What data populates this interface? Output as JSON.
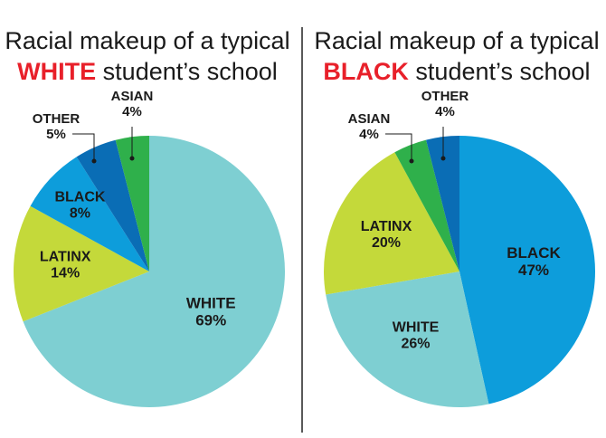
{
  "colors": {
    "white": "#7ecfd2",
    "latinx": "#c4d93a",
    "black": "#0d9ddb",
    "other": "#0a6db5",
    "asian": "#2fb04b",
    "highlight": "#e8202a",
    "text": "#1a1a1a",
    "divider": "#222222"
  },
  "chart_data": [
    {
      "type": "pie",
      "title_line1": "Racial makeup of a typical",
      "title_highlight": "WHITE",
      "title_rest": " student’s school",
      "start": "top",
      "direction": "clockwise",
      "slices": [
        {
          "key": "white",
          "label": "WHITE",
          "value": 69,
          "value_text": "69%"
        },
        {
          "key": "latinx",
          "label": "LATINX",
          "value": 14,
          "value_text": "14%"
        },
        {
          "key": "black",
          "label": "BLACK",
          "value": 8,
          "value_text": "8%"
        },
        {
          "key": "other",
          "label": "OTHER",
          "value": 5,
          "value_text": "5%"
        },
        {
          "key": "asian",
          "label": "ASIAN",
          "value": 4,
          "value_text": "4%"
        }
      ]
    },
    {
      "type": "pie",
      "title_line1": "Racial makeup of a typical",
      "title_highlight": "BLACK",
      "title_rest": " student’s school",
      "start": "top",
      "direction": "clockwise",
      "slices": [
        {
          "key": "black",
          "label": "BLACK",
          "value": 47,
          "value_text": "47%"
        },
        {
          "key": "white",
          "label": "WHITE",
          "value": 26,
          "value_text": "26%"
        },
        {
          "key": "latinx",
          "label": "LATINX",
          "value": 20,
          "value_text": "20%"
        },
        {
          "key": "asian",
          "label": "ASIAN",
          "value": 4,
          "value_text": "4%"
        },
        {
          "key": "other",
          "label": "OTHER",
          "value": 4,
          "value_text": "4%"
        }
      ]
    }
  ]
}
